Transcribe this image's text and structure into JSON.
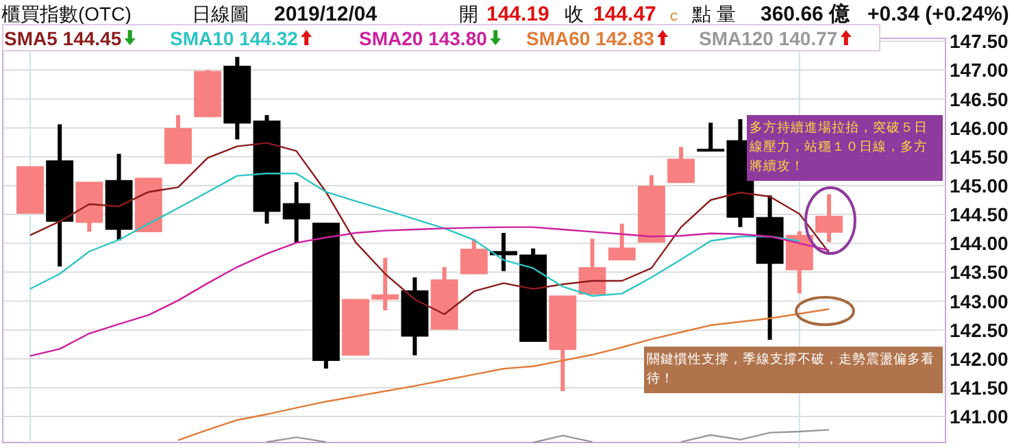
{
  "chart_data": {
    "type": "candlestick",
    "title": "櫃買指數(OTC)",
    "categories": [
      null,
      null,
      null,
      null,
      null,
      null,
      null,
      null,
      null,
      null,
      null,
      null,
      null,
      null,
      null,
      null,
      null,
      null,
      null,
      null,
      null,
      null,
      null,
      null,
      null,
      null,
      null,
      null
    ],
    "ohlc": [
      [
        144.52,
        145.33,
        144.52,
        145.33
      ],
      [
        145.43,
        146.06,
        143.6,
        144.38
      ],
      [
        144.36,
        145.06,
        144.2,
        145.06
      ],
      [
        145.09,
        145.55,
        144.05,
        144.24
      ],
      [
        144.2,
        145.13,
        144.2,
        145.13
      ],
      [
        145.38,
        146.22,
        145.38,
        145.99
      ],
      [
        146.19,
        147.0,
        146.19,
        146.98
      ],
      [
        147.07,
        147.23,
        145.8,
        146.08
      ],
      [
        146.12,
        146.22,
        144.34,
        144.55
      ],
      [
        144.69,
        145.06,
        144.01,
        144.42
      ],
      [
        144.35,
        144.35,
        141.83,
        141.97
      ],
      [
        142.06,
        143.03,
        142.06,
        143.03
      ],
      [
        143.03,
        143.75,
        142.84,
        143.11
      ],
      [
        143.18,
        143.41,
        142.06,
        142.39
      ],
      [
        142.51,
        143.59,
        142.51,
        143.37
      ],
      [
        143.47,
        144.07,
        143.47,
        143.9
      ],
      [
        143.86,
        144.18,
        143.52,
        143.8
      ],
      [
        143.8,
        143.91,
        142.3,
        142.3
      ],
      [
        142.16,
        143.09,
        141.44,
        143.09
      ],
      [
        143.12,
        144.08,
        143.12,
        143.58
      ],
      [
        143.71,
        144.34,
        143.71,
        143.92
      ],
      [
        144.02,
        145.18,
        144.02,
        144.99
      ],
      [
        145.05,
        145.67,
        145.05,
        145.46
      ],
      [
        145.63,
        146.09,
        145.61,
        145.61
      ],
      [
        145.78,
        146.15,
        144.28,
        144.45
      ],
      [
        144.45,
        144.83,
        142.33,
        143.65
      ],
      [
        143.54,
        144.21,
        143.13,
        144.14
      ],
      [
        144.19,
        144.85,
        144.02,
        144.47
      ]
    ],
    "colors": [
      "#f88080",
      "#000000",
      "#f88080",
      "#000000",
      "#f88080",
      "#f88080",
      "#f88080",
      "#000000",
      "#000000",
      "#000000",
      "#000000",
      "#f88080",
      "#f88080",
      "#000000",
      "#f88080",
      "#f88080",
      "#000000",
      "#000000",
      "#f88080",
      "#f88080",
      "#f88080",
      "#f88080",
      "#f88080",
      "#000000",
      "#000000",
      "#000000",
      "#f88080",
      "#f88080"
    ],
    "series": [
      {
        "name": "SMA5 144.45",
        "type": "line",
        "color": "#8b1c1c",
        "values": [
          144.14,
          144.38,
          144.68,
          144.64,
          144.89,
          144.97,
          145.48,
          145.68,
          145.74,
          145.6,
          144.89,
          144.02,
          143.47,
          143.03,
          142.77,
          143.17,
          143.31,
          143.21,
          143.29,
          143.35,
          143.35,
          143.57,
          144.28,
          144.75,
          144.88,
          144.81,
          144.51,
          143.84
        ]
      },
      {
        "name": "SMA10 144.32",
        "type": "line",
        "color": "#2ec4c4",
        "values": [
          143.21,
          143.47,
          143.86,
          144.06,
          144.34,
          144.61,
          144.89,
          145.17,
          145.21,
          145.21,
          144.89,
          144.73,
          144.58,
          144.42,
          144.26,
          144.06,
          143.71,
          143.57,
          143.25,
          143.09,
          143.13,
          143.41,
          143.72,
          144.04,
          144.12,
          144.12,
          144.04,
          null
        ]
      },
      {
        "name": "SMA20 143.80",
        "type": "line",
        "color": "#cc1f9e",
        "values": [
          142.05,
          142.17,
          142.44,
          142.6,
          142.76,
          143.01,
          143.31,
          143.59,
          143.82,
          144.01,
          144.1,
          144.18,
          144.22,
          144.24,
          144.26,
          144.27,
          144.28,
          144.28,
          144.24,
          144.2,
          144.16,
          144.12,
          144.13,
          144.17,
          144.16,
          144.12,
          144.0,
          143.88
        ]
      },
      {
        "name": "SMA60 142.83",
        "type": "line",
        "color": "#e07b39",
        "values": [
          null,
          null,
          null,
          null,
          null,
          140.59,
          140.77,
          140.94,
          141.04,
          141.15,
          141.26,
          141.35,
          141.44,
          141.53,
          141.63,
          141.73,
          141.83,
          141.87,
          141.97,
          142.07,
          142.2,
          142.34,
          142.46,
          142.58,
          142.64,
          142.7,
          142.78,
          142.86
        ]
      },
      {
        "name": "SMA120 140.77",
        "type": "line",
        "color": "#999999",
        "values": [
          null,
          null,
          null,
          null,
          null,
          null,
          null,
          null,
          140.56,
          140.64,
          140.56,
          null,
          null,
          null,
          null,
          null,
          null,
          140.55,
          140.67,
          140.56,
          null,
          null,
          140.56,
          140.68,
          140.6,
          140.72,
          140.74,
          140.77
        ]
      }
    ],
    "ylim": [
      140.55,
      147.55
    ],
    "yticks": [
      {
        "value": 141,
        "label": "141.00"
      },
      {
        "value": 141.5,
        "label": "141.50"
      },
      {
        "value": 142,
        "label": "142.00"
      },
      {
        "value": 142.5,
        "label": "142.50"
      },
      {
        "value": 143,
        "label": "143.00"
      },
      {
        "value": 143.5,
        "label": "143.50"
      },
      {
        "value": 144,
        "label": "144.00"
      },
      {
        "value": 144.5,
        "label": "144.50"
      },
      {
        "value": 145,
        "label": "145.00"
      },
      {
        "value": 145.5,
        "label": "145.50"
      },
      {
        "value": 146,
        "label": "146.00"
      },
      {
        "value": 146.5,
        "label": "146.50"
      },
      {
        "value": 147,
        "label": "147.00"
      },
      {
        "value": 147.5,
        "label": "147.50"
      }
    ],
    "grid": "y",
    "legend": "top",
    "tick_labels": "y",
    "annotations": [
      "日線圖",
      "2019/12/04",
      "開",
      "144.19",
      "收",
      "144.47",
      "c",
      "點 量",
      "360.66 億",
      "+0.34 (+0.24%)",
      "多方持續進場拉抬，突破５日線壓力，站穩１０日線，多方將續攻！",
      "關鍵慣性支撐，季線支撐不破，走勢震盪偏多看待！"
    ]
  }
}
